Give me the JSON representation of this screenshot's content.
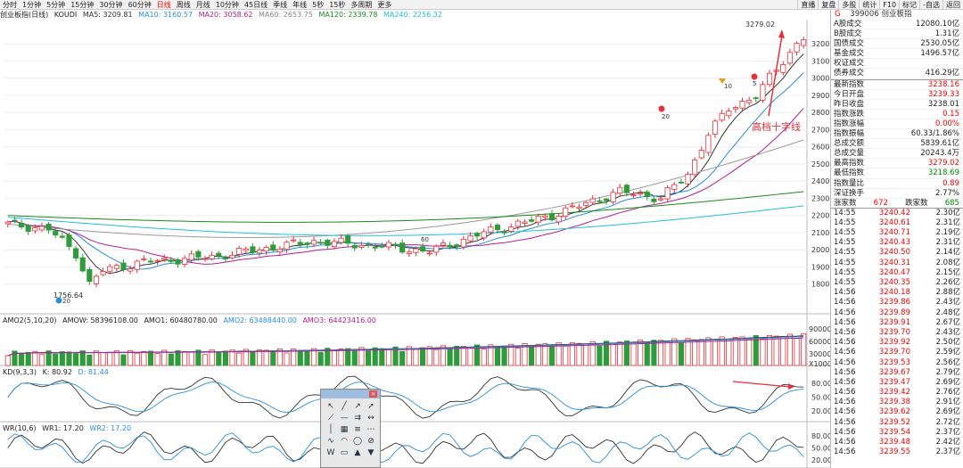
{
  "toolbar": {
    "tabs": [
      "分时",
      "1分钟",
      "5分钟",
      "15分钟",
      "30分钟",
      "60分钟",
      "日线",
      "周线",
      "月线",
      "10分钟",
      "45日线",
      "季线",
      "年线",
      "5秒",
      "15秒",
      "多周期",
      "更多"
    ],
    "active": "日线",
    "right": [
      "直播",
      "复盘",
      "多股",
      "统计",
      "F10",
      "标记",
      "-自选",
      "返回"
    ]
  },
  "ma_header": {
    "name": "创业板指(日线)",
    "koudi": "KOUDI",
    "ma5": "MA5: 3209.81",
    "ma10": "MA10: 3160.57",
    "ma20": "MA20: 3058.62",
    "ma60": "MA60: 2653.75",
    "ma120": "MA120: 2339.78",
    "ma240": "MA240: 2256.32"
  },
  "colors": {
    "up": "#e5303a",
    "down": "#2e9c3a",
    "ma5": "#333333",
    "ma10": "#2a8fd6",
    "ma20": "#b0208f",
    "ma60": "#9a9a9a",
    "ma120": "#1a8a1a",
    "ma240": "#20c0d8"
  },
  "price_axis": [
    "3200",
    "3100",
    "3000",
    "2900",
    "2800",
    "2700",
    "2600",
    "2500",
    "2400",
    "2300",
    "2200",
    "2100",
    "2000",
    "1900",
    "1800"
  ],
  "annotations": {
    "high": "3279.02",
    "low": "1756.64",
    "low_badge": "20",
    "callout": "高档十字线",
    "m20": "20",
    "m10": "10",
    "m5": "5",
    "m60": "60"
  },
  "volume": {
    "label": "AMO2(5,10,20)",
    "amow": "AMOW: 58396108.00",
    "amo1": "AMO1: 60480780.00",
    "amo2": "AMO2: 63488440.00",
    "amo3": "AMO3: 64423416.00",
    "axis": [
      "90000",
      "60000",
      "30000",
      "X1000"
    ]
  },
  "kd": {
    "label": "KD(9,3,3)",
    "k": "K: 80.92",
    "d": "D: 81.44",
    "axis": [
      "80.00",
      "50.00",
      "20.00"
    ]
  },
  "wr": {
    "label": "WR(10,6)",
    "wr1": "WR1: 17.20",
    "wr2": "WR2: 17.20",
    "axis": [
      "80.00",
      "50.00",
      "20.00"
    ]
  },
  "quote": {
    "icon": "G",
    "code": "399006",
    "name": "创业板指",
    "rows1": [
      {
        "k": "A股成交",
        "v": "12080.10亿"
      },
      {
        "k": "B股成交",
        "v": "1.31亿"
      },
      {
        "k": "国债成交",
        "v": "2530.05亿"
      },
      {
        "k": "基金成交",
        "v": "1496.57亿"
      },
      {
        "k": "权证成交",
        "v": ""
      },
      {
        "k": "债券成交",
        "v": "416.29亿"
      }
    ],
    "rows2": [
      {
        "k": "最新指数",
        "v": "3238.16",
        "c": "red"
      },
      {
        "k": "今日开盘",
        "v": "3239.33",
        "c": "red"
      },
      {
        "k": "昨日收盘",
        "v": "3238.01",
        "c": ""
      },
      {
        "k": "指数涨跌",
        "v": "0.15",
        "c": "red"
      },
      {
        "k": "指数涨幅",
        "v": "0.00%",
        "c": "red"
      },
      {
        "k": "指数振幅",
        "v": "60.33/1.86%",
        "c": ""
      },
      {
        "k": "总成交额",
        "v": "5839.61亿",
        "c": ""
      },
      {
        "k": "总成交量",
        "v": "20243.4万",
        "c": ""
      },
      {
        "k": "最高指数",
        "v": "3279.02",
        "c": "red"
      },
      {
        "k": "最低指数",
        "v": "3218.69",
        "c": "grn"
      },
      {
        "k": "指数量比",
        "v": "0.89",
        "c": "red"
      },
      {
        "k": "深证换手",
        "v": "2.77%",
        "c": ""
      }
    ],
    "up_label": "涨家数",
    "up": "672",
    "down_label": "跌家数",
    "down": "685",
    "ticks": [
      [
        "14:55",
        "3240.42",
        "2.30亿"
      ],
      [
        "14:55",
        "3240.61",
        "2.31亿"
      ],
      [
        "14:55",
        "3240.71",
        "2.19亿"
      ],
      [
        "14:55",
        "3240.43",
        "2.31亿"
      ],
      [
        "14:55",
        "3240.50",
        "2.14亿"
      ],
      [
        "14:55",
        "3240.31",
        "2.08亿"
      ],
      [
        "14:55",
        "3240.47",
        "2.15亿"
      ],
      [
        "14:55",
        "3240.35",
        "2.26亿"
      ],
      [
        "14:56",
        "3240.18",
        "2.88亿"
      ],
      [
        "14:56",
        "3239.86",
        "2.43亿"
      ],
      [
        "14:56",
        "3239.89",
        "2.48亿"
      ],
      [
        "14:56",
        "3239.91",
        "2.67亿"
      ],
      [
        "14:56",
        "3239.70",
        "2.43亿"
      ],
      [
        "14:56",
        "3239.92",
        "2.50亿"
      ],
      [
        "14:56",
        "3239.70",
        "2.59亿"
      ],
      [
        "14:56",
        "3239.53",
        "2.56亿"
      ],
      [
        "14:56",
        "3239.67",
        "2.79亿"
      ],
      [
        "14:56",
        "3239.47",
        "2.69亿"
      ],
      [
        "14:56",
        "3239.42",
        "2.76亿"
      ],
      [
        "14:56",
        "3239.38",
        "2.91亿"
      ],
      [
        "14:56",
        "3239.62",
        "2.69亿"
      ],
      [
        "14:56",
        "3239.52",
        "2.72亿"
      ],
      [
        "14:56",
        "3239.54",
        "2.37亿"
      ],
      [
        "14:56",
        "3239.48",
        "2.42亿"
      ],
      [
        "14:56",
        "3239.55",
        "2.37亿"
      ]
    ]
  }
}
